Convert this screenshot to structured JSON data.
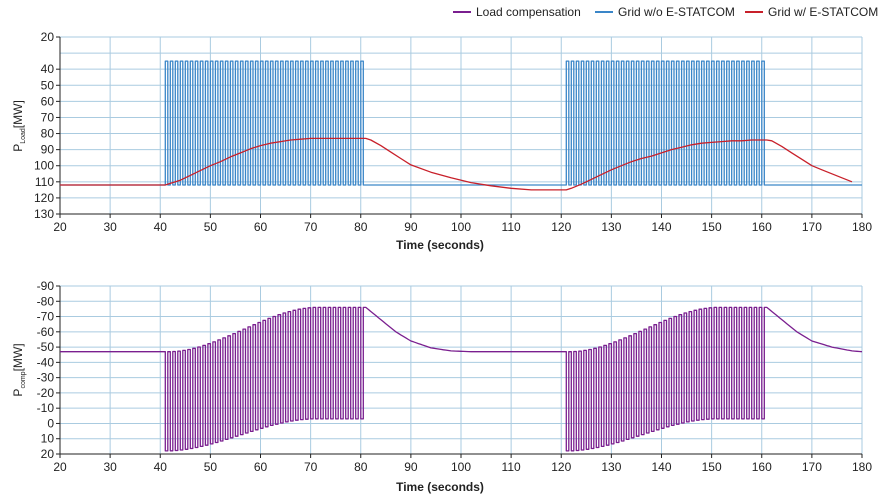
{
  "colors": {
    "load_compensation": "#7a1f8f",
    "grid_without": "#3a86c8",
    "grid_with": "#c8202a",
    "grid_lines": "#aacbe0",
    "axis": "#222222"
  },
  "legend": {
    "placement": "top-right",
    "items": [
      {
        "label": "Load compensation",
        "color_key": "load_compensation"
      },
      {
        "label": "Grid w/o E-STATCOM",
        "color_key": "grid_without"
      },
      {
        "label": "Grid w/ E-STATCOM",
        "color_key": "grid_with"
      }
    ]
  },
  "chart_data": [
    {
      "type": "line",
      "xlabel": "Time (seconds)",
      "ylabel": {
        "main": "P",
        "sub": "Load",
        "unit": "[MW]"
      },
      "xlim": [
        20,
        180
      ],
      "ylim": [
        20,
        130
      ],
      "y_inverted": true,
      "grid": true,
      "xticks": [
        20,
        30,
        40,
        50,
        60,
        70,
        80,
        90,
        100,
        110,
        120,
        130,
        140,
        150,
        160,
        170,
        180
      ],
      "yticks": [
        20,
        30,
        40,
        50,
        60,
        70,
        80,
        90,
        100,
        110,
        120,
        130
      ],
      "ytick_labels": [
        "20",
        "40",
        "50",
        "60",
        "70",
        "80",
        "90",
        "100",
        "110",
        "120",
        "130"
      ],
      "ytick_label_values": [
        20,
        40,
        50,
        60,
        70,
        80,
        90,
        100,
        110,
        120,
        130
      ],
      "series": [
        {
          "name": "Grid w/o E-STATCOM",
          "color_key": "grid_without",
          "kind": "pulse_train",
          "baseline": 112,
          "peak": 35,
          "pulse_intervals": [
            [
              41,
              81
            ],
            [
              121,
              161
            ]
          ],
          "pulse_period": 1.0
        },
        {
          "name": "Grid w/ E-STATCOM",
          "color_key": "grid_with",
          "x": [
            20,
            40,
            41,
            42,
            44,
            46,
            48,
            50,
            52,
            54,
            56,
            58,
            60,
            62,
            64,
            66,
            68,
            70,
            72,
            74,
            76,
            78,
            80,
            81,
            82,
            84,
            86,
            88,
            90,
            94,
            98,
            102,
            106,
            110,
            114,
            118,
            120,
            121,
            122,
            124,
            126,
            128,
            130,
            132,
            134,
            136,
            138,
            140,
            142,
            144,
            146,
            148,
            150,
            152,
            154,
            156,
            158,
            160,
            161,
            162,
            164,
            166,
            168,
            170,
            172,
            174,
            176,
            178
          ],
          "y": [
            112,
            112,
            112,
            111,
            109,
            106,
            103,
            100,
            97.5,
            94.5,
            92,
            89.5,
            87.5,
            86,
            85,
            84,
            83.5,
            83,
            83,
            83,
            83,
            83,
            83,
            83,
            84,
            87.5,
            91.5,
            95.5,
            99.5,
            104,
            107.5,
            110.5,
            112.5,
            114,
            115,
            115,
            115,
            115,
            114,
            111.5,
            108.5,
            105.5,
            102.5,
            100,
            97.5,
            95.5,
            94,
            92,
            90,
            88.5,
            87,
            86,
            85.5,
            85,
            84.5,
            84.5,
            84,
            84,
            84,
            84.5,
            88,
            92,
            96,
            100,
            102.5,
            105,
            107.5,
            110
          ]
        }
      ]
    },
    {
      "type": "line",
      "xlabel": "Time (seconds)",
      "ylabel": {
        "main": "P",
        "sub": "comp",
        "unit": "[MW]"
      },
      "xlim": [
        20,
        180
      ],
      "ylim": [
        -90,
        20
      ],
      "y_inverted": true,
      "grid": true,
      "xticks": [
        20,
        30,
        40,
        50,
        60,
        70,
        80,
        90,
        100,
        110,
        120,
        130,
        140,
        150,
        160,
        170,
        180
      ],
      "yticks": [
        -90,
        -80,
        -70,
        -60,
        -50,
        -40,
        -30,
        -20,
        -10,
        0,
        10,
        20
      ],
      "ytick_labels": [
        "-90",
        "-80",
        "-70",
        "-60",
        "-50",
        "-40",
        "-30",
        "-20",
        "-10",
        "0",
        "10",
        "20"
      ],
      "series": [
        {
          "name": "Load compensation",
          "color_key": "load_compensation",
          "kind": "compensation_pulses",
          "baseline": -47,
          "pulse_intervals": [
            [
              41,
              81
            ],
            [
              121,
              161
            ]
          ],
          "pulse_period": 1.0,
          "peak_value": -76,
          "trough_start": 18,
          "trough_end": -3,
          "recovery": [
            [
              81,
              -76
            ],
            [
              84,
              -68
            ],
            [
              87,
              -60
            ],
            [
              90,
              -54
            ],
            [
              94,
              -49.5
            ],
            [
              98,
              -47.5
            ],
            [
              102,
              -47
            ],
            [
              120,
              -47
            ],
            [
              161,
              -76
            ],
            [
              164,
              -68
            ],
            [
              167,
              -60
            ],
            [
              170,
              -54
            ],
            [
              174,
              -50
            ],
            [
              178,
              -47.5
            ],
            [
              180,
              -47
            ]
          ]
        }
      ]
    }
  ]
}
